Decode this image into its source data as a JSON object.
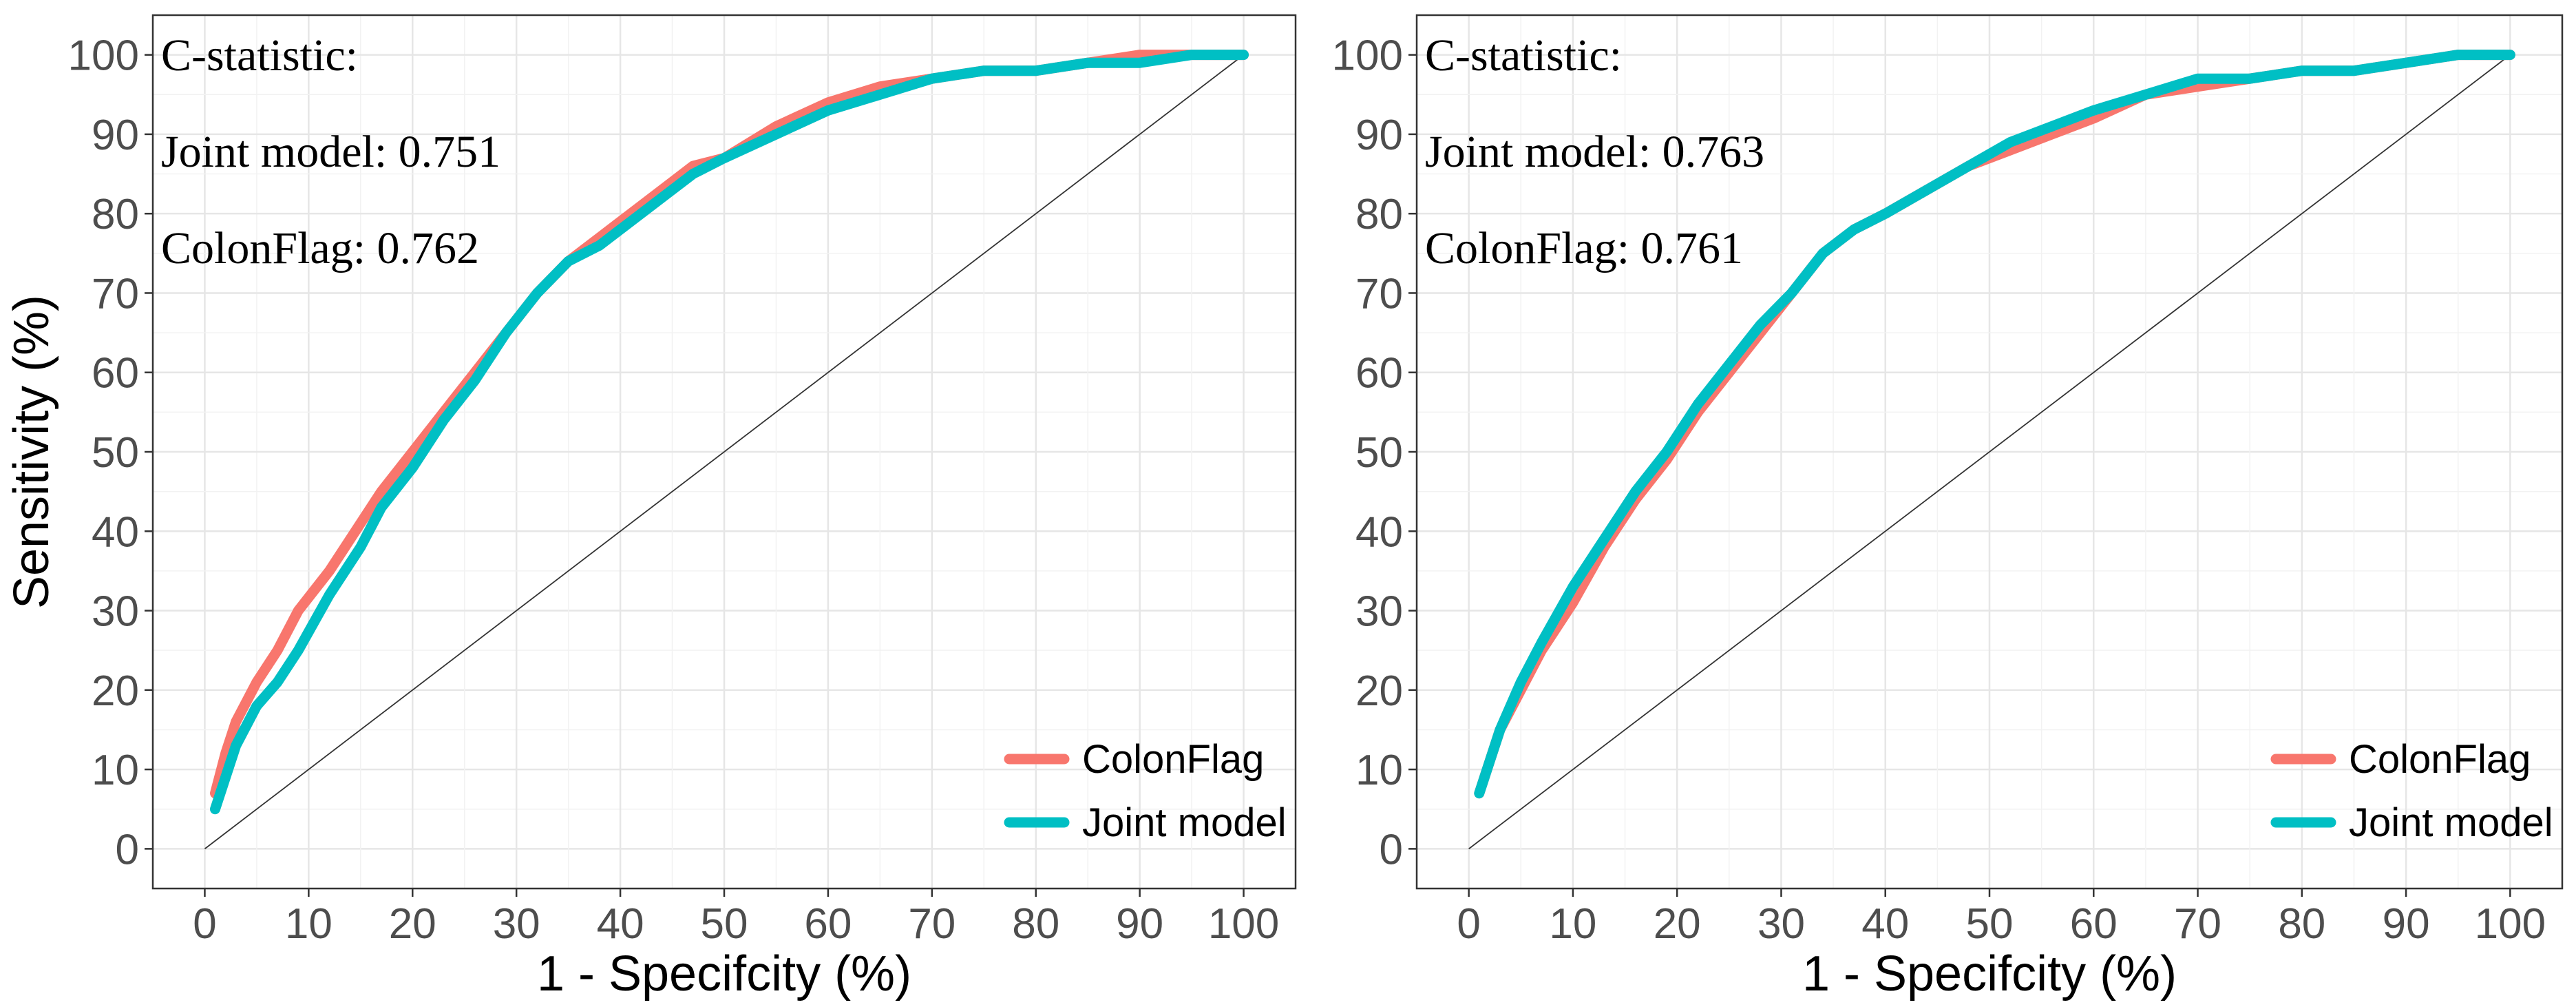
{
  "chart_data": [
    {
      "type": "line",
      "title": "",
      "xlabel": "1 - Specifcity (%)",
      "ylabel": "Sensitivity (%)",
      "xlim": [
        -5,
        105
      ],
      "ylim": [
        -5,
        105
      ],
      "xticks": [
        "0",
        "10",
        "20",
        "30",
        "40",
        "50",
        "60",
        "70",
        "80",
        "90",
        "100"
      ],
      "yticks": [
        "0",
        "10",
        "20",
        "30",
        "40",
        "50",
        "60",
        "70",
        "80",
        "90",
        "100"
      ],
      "grid": true,
      "legend_position": "bottom-right",
      "annotation": {
        "heading": "C-statistic",
        "colon": ":",
        "lines": [
          "Joint model: 0.751",
          "ColonFlag: 0.762"
        ]
      },
      "reference_line": {
        "x": [
          0,
          100
        ],
        "y": [
          0,
          100
        ]
      },
      "series": [
        {
          "name": "ColonFlag",
          "color": "#F8766D",
          "x": [
            1,
            2,
            3,
            5,
            7,
            9,
            12,
            15,
            17,
            20,
            23,
            26,
            29,
            32,
            35,
            38,
            41,
            44,
            47,
            50,
            55,
            60,
            65,
            70,
            75,
            80,
            85,
            90,
            95,
            100
          ],
          "y": [
            7,
            12,
            16,
            21,
            25,
            30,
            35,
            41,
            45,
            50,
            55,
            60,
            65,
            70,
            74,
            77,
            80,
            83,
            86,
            87,
            91,
            94,
            96,
            97,
            98,
            98,
            99,
            100,
            100,
            100
          ]
        },
        {
          "name": "Joint model",
          "color": "#00BFC4",
          "x": [
            1,
            2,
            3,
            5,
            7,
            9,
            12,
            15,
            17,
            20,
            23,
            26,
            29,
            32,
            35,
            38,
            41,
            44,
            47,
            50,
            55,
            60,
            65,
            70,
            75,
            80,
            85,
            90,
            95,
            100
          ],
          "y": [
            5,
            9,
            13,
            18,
            21,
            25,
            32,
            38,
            43,
            48,
            54,
            59,
            65,
            70,
            74,
            76,
            79,
            82,
            85,
            87,
            90,
            93,
            95,
            97,
            98,
            98,
            99,
            99,
            100,
            100
          ]
        }
      ]
    },
    {
      "type": "line",
      "title": "",
      "xlabel": "1 - Specifcity (%)",
      "ylabel": "",
      "xlim": [
        -5,
        105
      ],
      "ylim": [
        -5,
        105
      ],
      "xticks": [
        "0",
        "10",
        "20",
        "30",
        "40",
        "50",
        "60",
        "70",
        "80",
        "90",
        "100"
      ],
      "yticks": [
        "0",
        "10",
        "20",
        "30",
        "40",
        "50",
        "60",
        "70",
        "80",
        "90",
        "100"
      ],
      "grid": true,
      "legend_position": "bottom-right",
      "annotation": {
        "heading": "C-statistic",
        "colon": ":",
        "lines": [
          "Joint model: 0.763",
          "ColonFlag: 0.761"
        ]
      },
      "reference_line": {
        "x": [
          0,
          100
        ],
        "y": [
          0,
          100
        ]
      },
      "series": [
        {
          "name": "ColonFlag",
          "color": "#F8766D",
          "x": [
            1,
            2,
            3,
            5,
            7,
            10,
            13,
            16,
            19,
            22,
            25,
            28,
            31,
            34,
            37,
            40,
            44,
            48,
            52,
            56,
            60,
            65,
            70,
            75,
            80,
            85,
            90,
            95,
            100
          ],
          "y": [
            7,
            11,
            15,
            20,
            25,
            31,
            38,
            44,
            49,
            55,
            60,
            65,
            70,
            75,
            78,
            80,
            83,
            86,
            88,
            90,
            92,
            95,
            96,
            97,
            98,
            98,
            99,
            100,
            100
          ]
        },
        {
          "name": "Joint model",
          "color": "#00BFC4",
          "x": [
            1,
            2,
            3,
            5,
            7,
            10,
            13,
            16,
            19,
            22,
            25,
            28,
            31,
            34,
            37,
            40,
            44,
            48,
            52,
            56,
            60,
            65,
            70,
            75,
            80,
            85,
            90,
            95,
            100
          ],
          "y": [
            7,
            11,
            15,
            21,
            26,
            33,
            39,
            45,
            50,
            56,
            61,
            66,
            70,
            75,
            78,
            80,
            83,
            86,
            89,
            91,
            93,
            95,
            97,
            97,
            98,
            98,
            99,
            100,
            100
          ]
        }
      ]
    }
  ]
}
